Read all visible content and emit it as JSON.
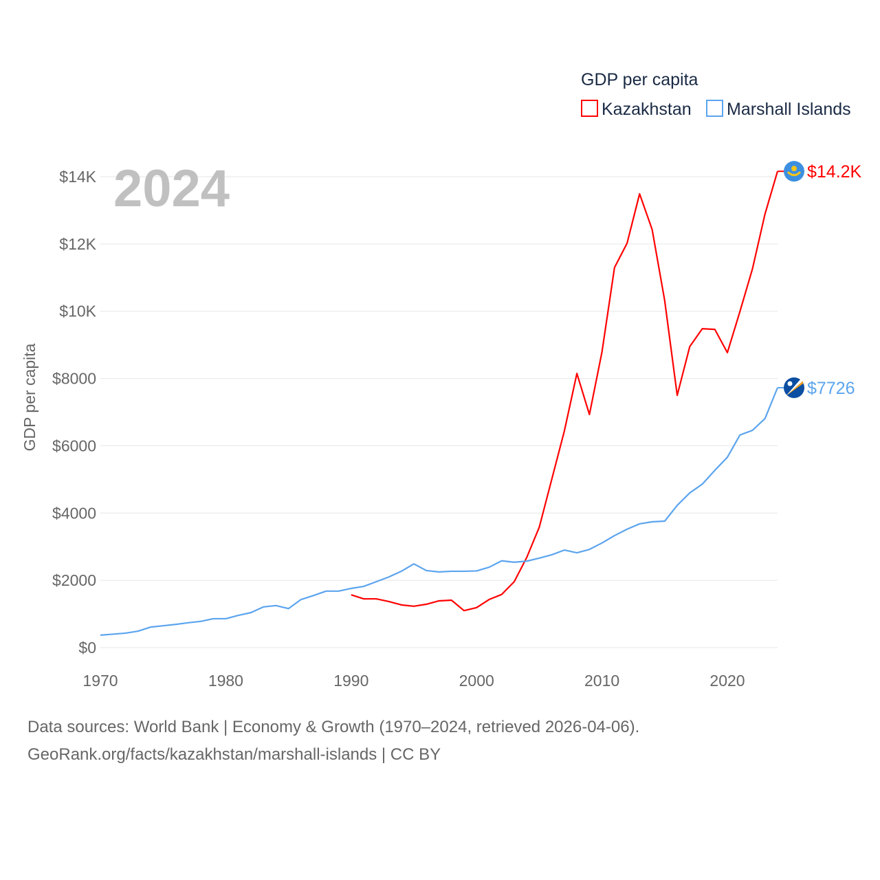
{
  "chart_data": {
    "type": "line",
    "title": "GDP per capita",
    "ylabel": "GDP per capita",
    "xlabel": "",
    "year_label": "2024",
    "xlim": [
      1970,
      2024
    ],
    "ylim": [
      0,
      14000
    ],
    "x_ticks": [
      1970,
      1980,
      1990,
      2000,
      2010,
      2020
    ],
    "x_tick_labels": [
      "1970",
      "1980",
      "1990",
      "2000",
      "2010",
      "2020"
    ],
    "y_ticks": [
      0,
      2000,
      4000,
      6000,
      8000,
      10000,
      12000,
      14000
    ],
    "y_tick_labels": [
      "$0",
      "$2000",
      "$4000",
      "$6000",
      "$8000",
      "$10K",
      "$12K",
      "$14K"
    ],
    "grid": true,
    "legend_position": "top-right",
    "series": [
      {
        "name": "Kazakhstan",
        "color": "#ff0000",
        "end_label": "$14.2K",
        "flag_icon": "kazakhstan-flag",
        "x": [
          1990,
          1991,
          1992,
          1993,
          1994,
          1995,
          1996,
          1997,
          1998,
          1999,
          2000,
          2001,
          2002,
          2003,
          2004,
          2005,
          2006,
          2007,
          2008,
          2009,
          2010,
          2011,
          2012,
          2013,
          2014,
          2015,
          2016,
          2017,
          2018,
          2019,
          2020,
          2021,
          2022,
          2023,
          2024
        ],
        "values": [
          1570,
          1450,
          1450,
          1370,
          1270,
          1230,
          1290,
          1390,
          1410,
          1100,
          1190,
          1430,
          1580,
          1960,
          2680,
          3580,
          5010,
          6440,
          8150,
          6930,
          8790,
          11300,
          12020,
          13490,
          12430,
          10320,
          7500,
          8950,
          9480,
          9460,
          8770,
          9990,
          11260,
          12890,
          14160
        ]
      },
      {
        "name": "Marshall Islands",
        "color": "#5ba4ee",
        "end_label": "$7726",
        "flag_icon": "marshall-islands-flag",
        "x": [
          1970,
          1971,
          1972,
          1973,
          1974,
          1975,
          1976,
          1977,
          1978,
          1979,
          1980,
          1981,
          1982,
          1983,
          1984,
          1985,
          1986,
          1987,
          1988,
          1989,
          1990,
          1991,
          1992,
          1993,
          1994,
          1995,
          1996,
          1997,
          1998,
          1999,
          2000,
          2001,
          2002,
          2003,
          2004,
          2005,
          2006,
          2007,
          2008,
          2009,
          2010,
          2011,
          2012,
          2013,
          2014,
          2015,
          2016,
          2017,
          2018,
          2019,
          2020,
          2021,
          2022,
          2023,
          2024
        ],
        "values": [
          370,
          400,
          430,
          490,
          610,
          650,
          690,
          740,
          780,
          860,
          860,
          960,
          1040,
          1210,
          1250,
          1160,
          1430,
          1550,
          1680,
          1680,
          1760,
          1820,
          1960,
          2100,
          2270,
          2490,
          2290,
          2250,
          2270,
          2270,
          2280,
          2390,
          2580,
          2540,
          2570,
          2660,
          2760,
          2900,
          2820,
          2920,
          3110,
          3330,
          3520,
          3680,
          3740,
          3760,
          4230,
          4600,
          4860,
          5270,
          5660,
          6320,
          6460,
          6810,
          7726
        ]
      }
    ]
  },
  "footer": {
    "sources": "Data sources: World Bank | Economy & Growth (1970–2024, retrieved 2026-04-06).",
    "attribution": "GeoRank.org/facts/kazakhstan/marshall-islands | CC BY"
  }
}
